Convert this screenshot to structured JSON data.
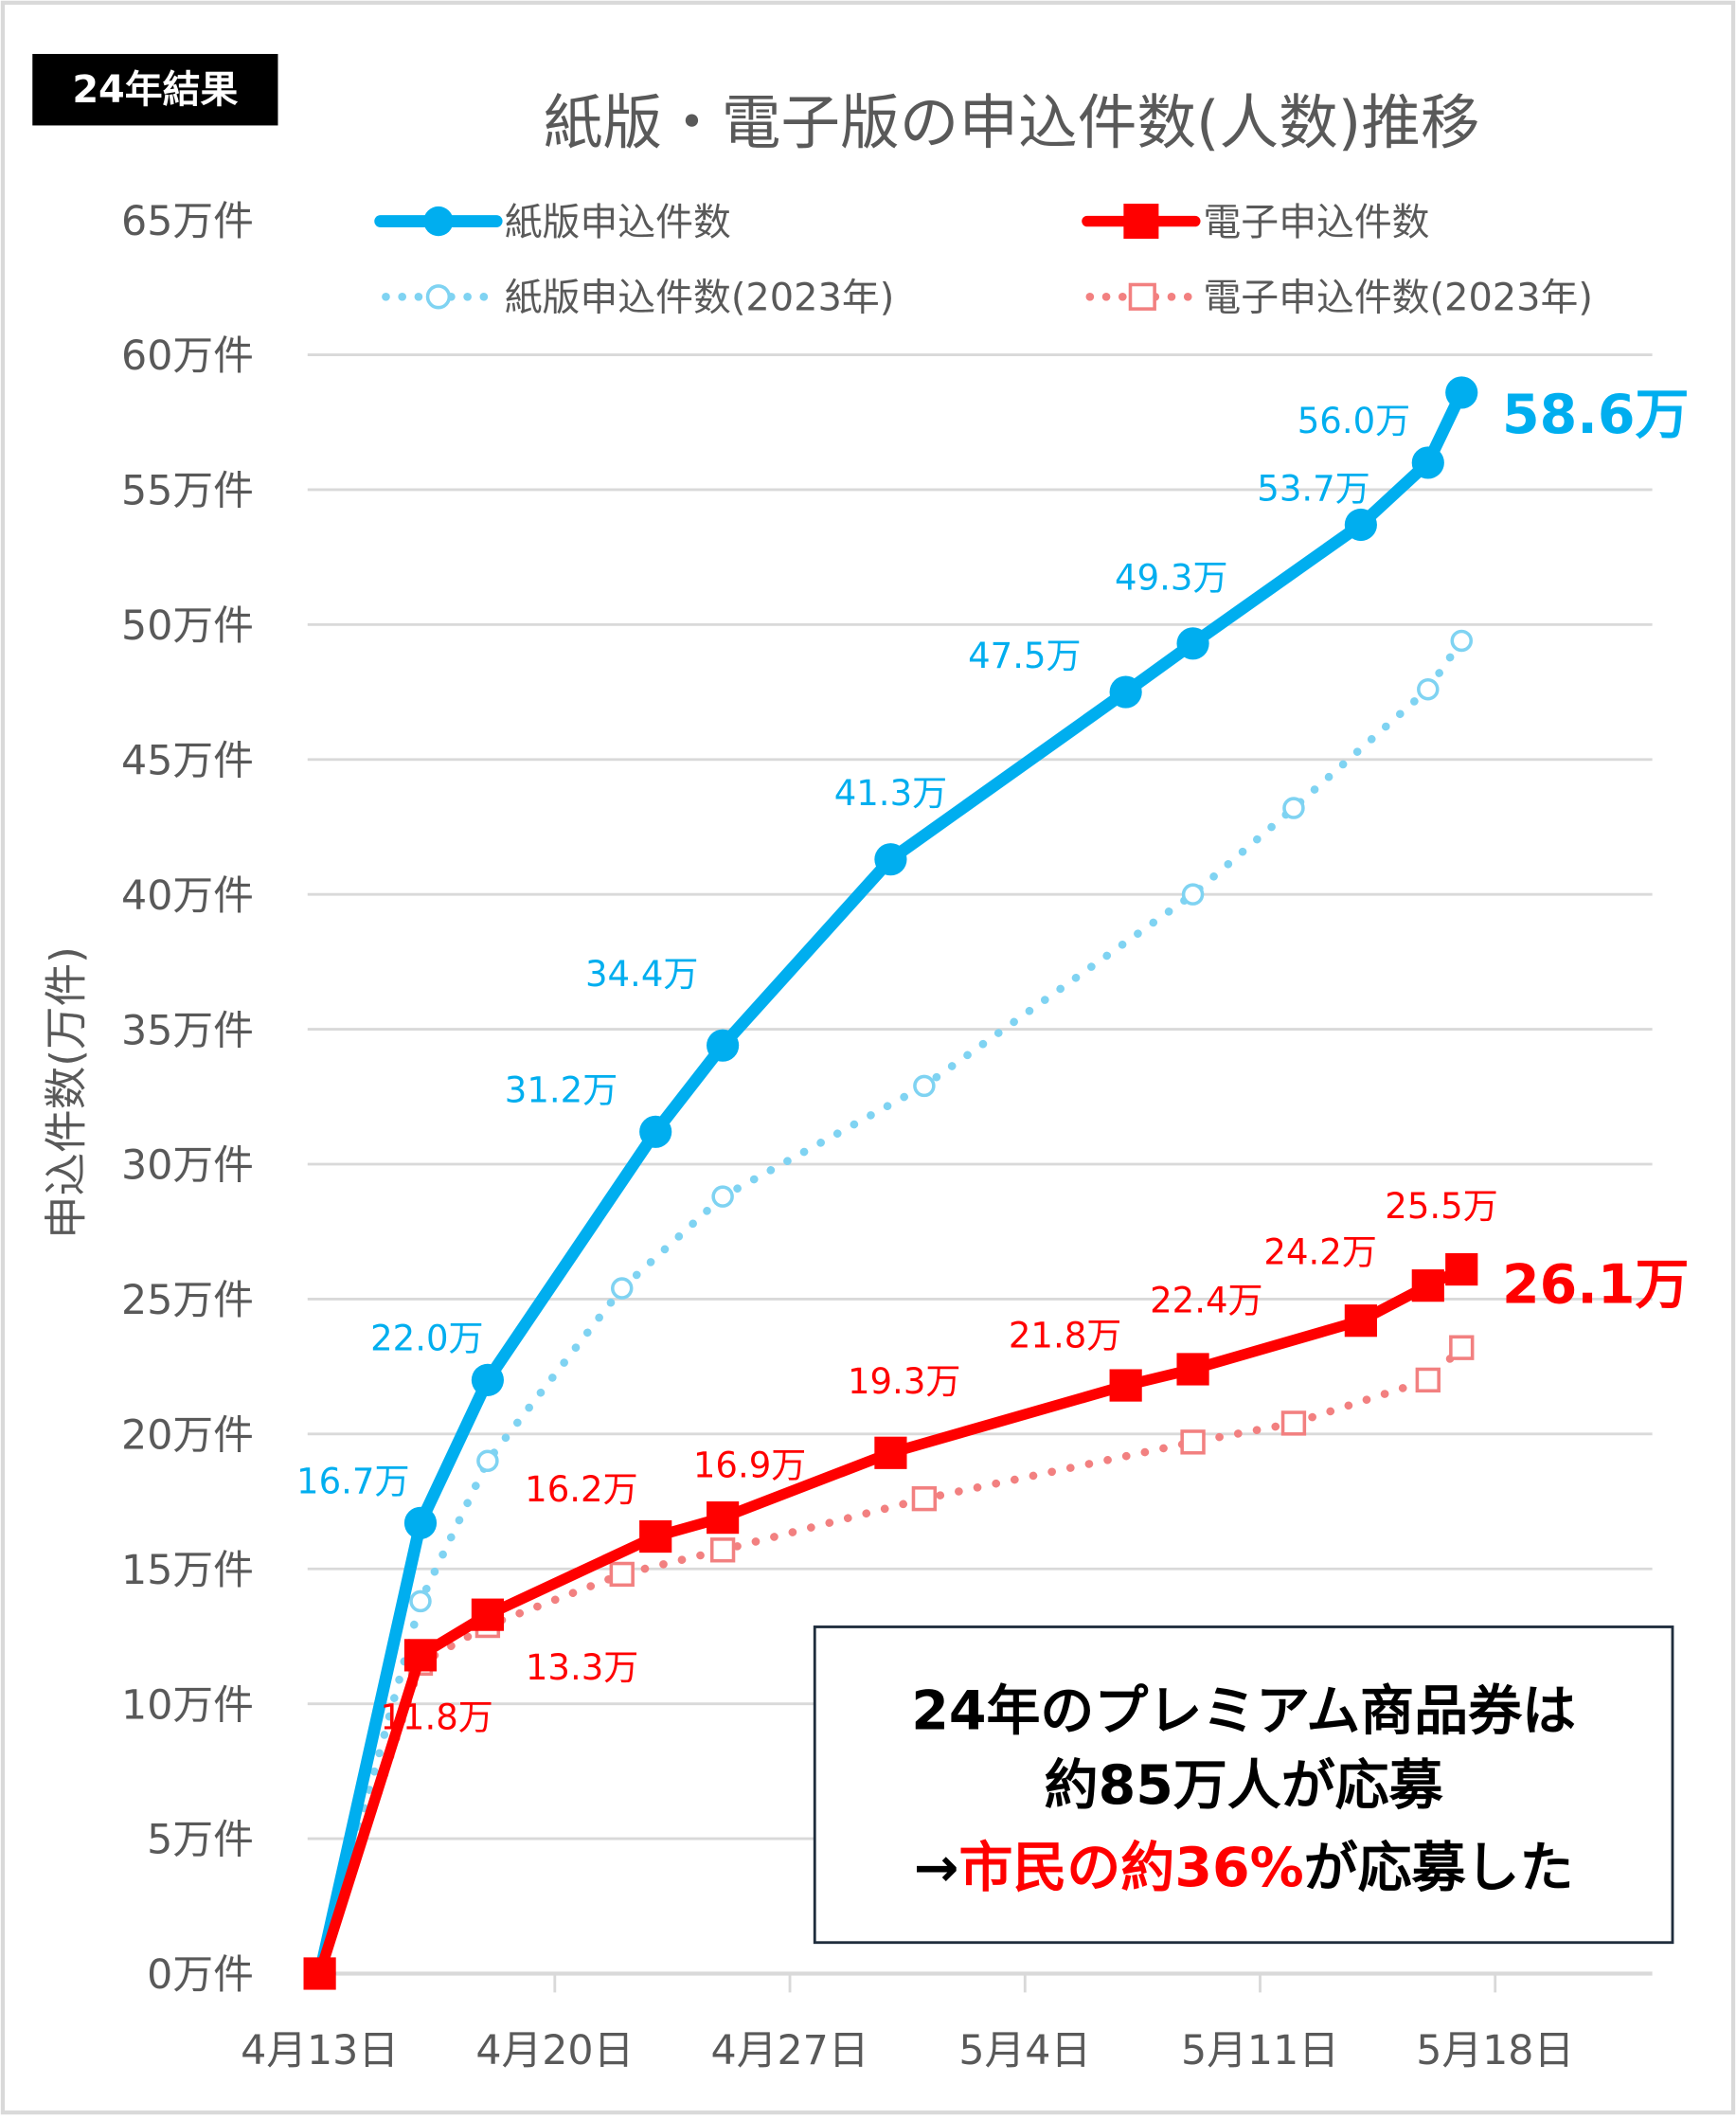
{
  "badge": "24年結果",
  "note": {
    "line1": "24年のプレミアム商品券は",
    "line2": "約85万人が応募",
    "line3_prefix": "→",
    "line3_highlight": "市民の約36%",
    "line3_suffix": "が応募した"
  },
  "colors": {
    "paper": "#00AEEF",
    "paper_2023": "#7FD3F2",
    "digital": "#FF0000",
    "digital_2023": "#F28080",
    "grid": "#D9D9D9",
    "text": "#595959"
  },
  "chart_data": {
    "type": "line",
    "title": "紙版・電子版の申込件数(人数)推移",
    "xlabel": "",
    "ylabel": "申込件数(万件)",
    "ylim": [
      0,
      65
    ],
    "y_ticks": [
      0,
      5,
      10,
      15,
      20,
      25,
      30,
      35,
      40,
      45,
      50,
      55,
      60,
      65
    ],
    "y_tick_labels": [
      "0万件",
      "5万件",
      "10万件",
      "15万件",
      "20万件",
      "25万件",
      "30万件",
      "35万件",
      "40万件",
      "45万件",
      "50万件",
      "55万件",
      "60万件",
      "65万件"
    ],
    "x_start": "4月13日",
    "xlim_days": [
      0,
      40
    ],
    "x_ticks_days": [
      0,
      7,
      14,
      21,
      28,
      35
    ],
    "x_tick_labels": [
      "4月13日",
      "4月20日",
      "4月27日",
      "5月4日",
      "5月11日",
      "5月18日"
    ],
    "grid": true,
    "legend_position": "top",
    "series": [
      {
        "name": "紙版申込件数",
        "style": "solid-circle",
        "x_days": [
          0,
          3,
          5,
          10,
          12,
          17,
          24,
          26,
          31,
          33,
          34
        ],
        "values": [
          0,
          16.7,
          22.0,
          31.2,
          34.4,
          41.3,
          47.5,
          49.3,
          53.7,
          56.0,
          58.6
        ],
        "labels": [
          "",
          "16.7万",
          "22.0万",
          "31.2万",
          "34.4万",
          "41.3万",
          "47.5万",
          "49.3万",
          "53.7万",
          "56.0万",
          "58.6万"
        ]
      },
      {
        "name": "電子申込件数",
        "style": "solid-square",
        "x_days": [
          0,
          3,
          5,
          10,
          12,
          17,
          24,
          26,
          31,
          33,
          34
        ],
        "values": [
          0,
          11.8,
          13.3,
          16.2,
          16.9,
          19.3,
          21.8,
          22.4,
          24.2,
          25.5,
          26.1
        ],
        "labels": [
          "",
          "11.8万",
          "13.3万",
          "16.2万",
          "16.9万",
          "19.3万",
          "21.8万",
          "22.4万",
          "24.2万",
          "25.5万",
          "26.1万"
        ]
      },
      {
        "name": "紙版申込件数(2023年)",
        "style": "dotted-circle",
        "x_days": [
          0,
          3,
          5,
          9,
          12,
          18,
          26,
          29,
          33,
          34
        ],
        "values": [
          0,
          13.8,
          19.0,
          25.4,
          28.8,
          32.9,
          40.0,
          43.2,
          47.6,
          49.4
        ]
      },
      {
        "name": "電子申込件数(2023年)",
        "style": "dotted-square",
        "x_days": [
          0,
          3,
          5,
          9,
          12,
          18,
          26,
          29,
          33,
          34
        ],
        "values": [
          0,
          11.5,
          12.9,
          14.8,
          15.7,
          17.6,
          19.7,
          20.4,
          22.0,
          23.2
        ]
      }
    ]
  }
}
